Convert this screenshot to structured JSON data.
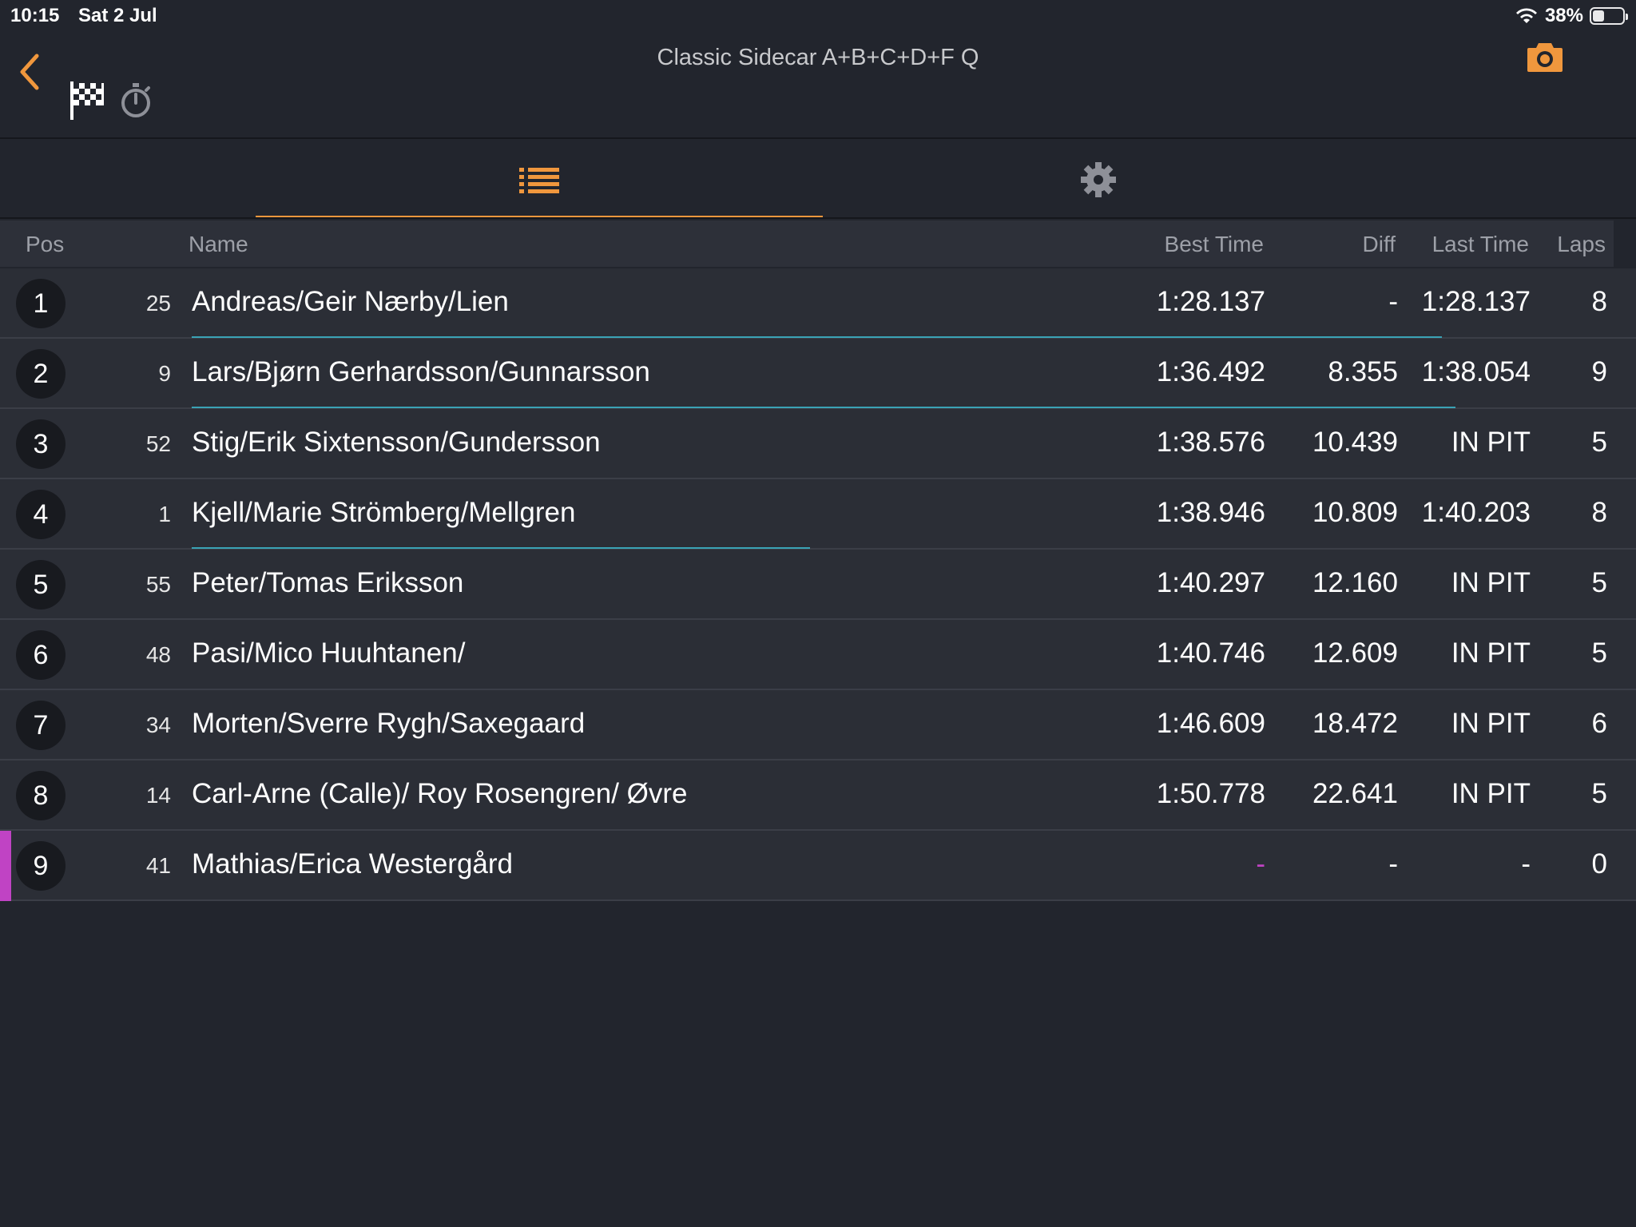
{
  "status_bar": {
    "time": "10:15",
    "date": "Sat 2 Jul",
    "battery": "38%",
    "battery_level": 0.38,
    "icons": [
      "wifi-icon",
      "battery-icon"
    ]
  },
  "header": {
    "title": "Classic Sidecar A+B+C+D+F Q",
    "icons": [
      "back-chevron-icon",
      "checkered-flag-icon",
      "stopwatch-icon",
      "camera-icon"
    ],
    "accent_color": "#f0973d"
  },
  "tabs": [
    {
      "icon": "list-icon",
      "active": true
    },
    {
      "icon": "gear-icon",
      "active": false
    }
  ],
  "table": {
    "headers": {
      "pos": "Pos",
      "name": "Name",
      "best": "Best Time",
      "diff": "Diff",
      "last": "Last Time",
      "laps": "Laps"
    },
    "rows": [
      {
        "pos": "1",
        "num": "25",
        "name": "Andreas/Geir Nærby/Lien",
        "best": "1:28.137",
        "diff": "-",
        "last": "1:28.137",
        "laps": "8",
        "lap_progress": 0.91
      },
      {
        "pos": "2",
        "num": "9",
        "name": "Lars/Bjørn Gerhardsson/Gunnarsson",
        "best": "1:36.492",
        "diff": "8.355",
        "last": "1:38.054",
        "laps": "9",
        "lap_progress": 0.92
      },
      {
        "pos": "3",
        "num": "52",
        "name": "Stig/Erik Sixtensson/Gundersson",
        "best": "1:38.576",
        "diff": "10.439",
        "last": "IN PIT",
        "laps": "5",
        "lap_progress": 0
      },
      {
        "pos": "4",
        "num": "1",
        "name": "Kjell/Marie Strömberg/Mellgren",
        "best": "1:38.946",
        "diff": "10.809",
        "last": "1:40.203",
        "laps": "8",
        "lap_progress": 0.45
      },
      {
        "pos": "5",
        "num": "55",
        "name": "Peter/Tomas Eriksson",
        "best": "1:40.297",
        "diff": "12.160",
        "last": "IN PIT",
        "laps": "5",
        "lap_progress": 0
      },
      {
        "pos": "6",
        "num": "48",
        "name": "Pasi/Mico Huuhtanen/",
        "best": "1:40.746",
        "diff": "12.609",
        "last": "IN PIT",
        "laps": "5",
        "lap_progress": 0
      },
      {
        "pos": "7",
        "num": "34",
        "name": "Morten/Sverre Rygh/Saxegaard",
        "best": "1:46.609",
        "diff": "18.472",
        "last": "IN PIT",
        "laps": "6",
        "lap_progress": 0
      },
      {
        "pos": "8",
        "num": "14",
        "name": "Carl-Arne (Calle)/ Roy Rosengren/ Øvre",
        "best": "1:50.778",
        "diff": "22.641",
        "last": "IN PIT",
        "laps": "5",
        "lap_progress": 0
      },
      {
        "pos": "9",
        "num": "41",
        "name": "Mathias/Erica Westergård",
        "best": "-",
        "diff": "-",
        "last": "-",
        "laps": "0",
        "lap_progress": 0,
        "accent_color": "#c043c4"
      }
    ]
  }
}
